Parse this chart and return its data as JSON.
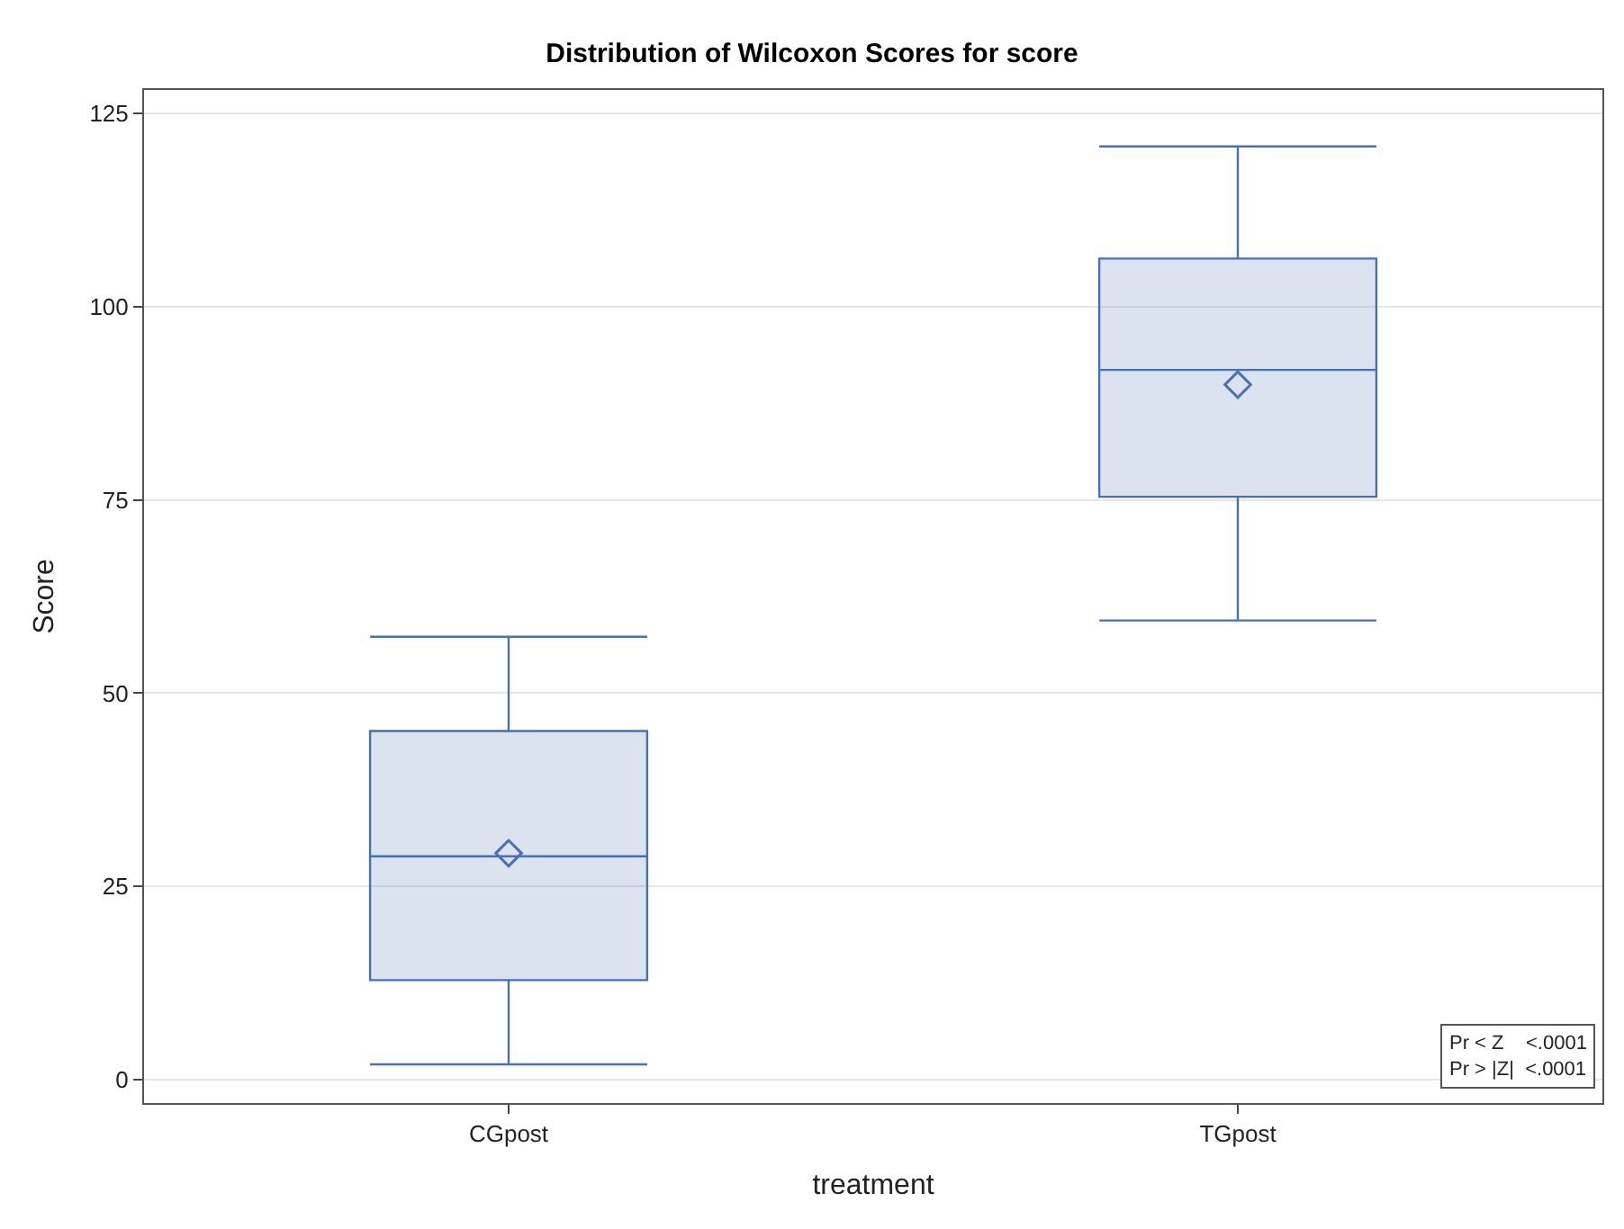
{
  "chart_data": {
    "type": "box",
    "title": "Distribution of Wilcoxon Scores for score",
    "xlabel": "treatment",
    "ylabel": "Score",
    "categories": [
      "CGpost",
      "TGpost"
    ],
    "boxes": [
      {
        "low": 2,
        "q1": 12.9,
        "median": 28.9,
        "q3": 45.1,
        "high": 57.3,
        "mean": 29.3
      },
      {
        "low": 59.4,
        "q1": 75.4,
        "median": 91.8,
        "q3": 106.2,
        "high": 120.7,
        "mean": 89.9
      }
    ],
    "color": "#4a6fb5",
    "ylim": [
      -3,
      128
    ],
    "yticks": [
      0,
      25,
      50,
      75,
      100,
      125
    ],
    "grid": "y",
    "annotations": [
      "Pr < Z    <.0001",
      "Pr > |Z|  <.0001"
    ]
  }
}
